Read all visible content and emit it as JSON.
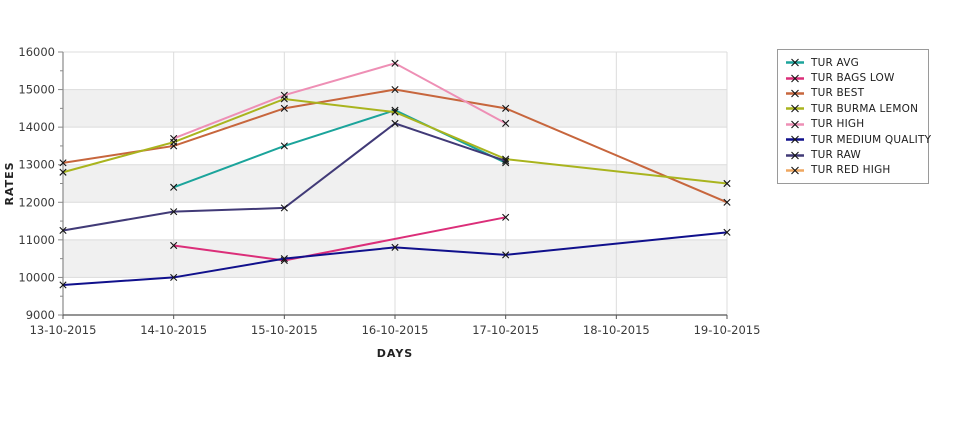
{
  "page": {
    "background": "#ffffff"
  },
  "chart_data": {
    "type": "line",
    "title": "",
    "xlabel": "DAYS",
    "ylabel": "RATES",
    "x_categories": [
      "13-10-2015",
      "14-10-2015",
      "15-10-2015",
      "16-10-2015",
      "17-10-2015",
      "18-10-2015",
      "19-10-2015"
    ],
    "ylim": [
      9000,
      16000
    ],
    "ytick_step": 1000,
    "y_minor_tick_step": 500,
    "grid": true,
    "legend_position": "outside-top-right",
    "marker": "x",
    "marker_color": "#141414",
    "band_color": "#f0f0f0",
    "band_ranges": [
      [
        10000,
        11000
      ],
      [
        12000,
        13000
      ],
      [
        14000,
        15000
      ]
    ],
    "gridline_color": "#dcdcdc",
    "axis_color": "#8a8a8a",
    "bottom_axis_color": "#555555",
    "tick_label_color": "#3a3a3a",
    "series": [
      {
        "name": "TUR AVG",
        "color": "#1BA49B",
        "points": [
          [
            1,
            12400
          ],
          [
            2,
            13500
          ],
          [
            3,
            14450
          ],
          [
            4,
            13050
          ]
        ]
      },
      {
        "name": "TUR BAGS LOW",
        "color": "#DB2E79",
        "points": [
          [
            1,
            10850
          ],
          [
            2,
            10450
          ],
          [
            4,
            11600
          ]
        ]
      },
      {
        "name": "TUR BEST",
        "color": "#C7663D",
        "points": [
          [
            0,
            13050
          ],
          [
            1,
            13500
          ],
          [
            2,
            14500
          ],
          [
            3,
            15000
          ],
          [
            4,
            14500
          ],
          [
            6,
            12000
          ]
        ]
      },
      {
        "name": "TUR BURMA LEMON",
        "color": "#A9B41E",
        "points": [
          [
            0,
            12800
          ],
          [
            1,
            13600
          ],
          [
            2,
            14750
          ],
          [
            3,
            14400
          ],
          [
            4,
            13150
          ],
          [
            6,
            12500
          ]
        ]
      },
      {
        "name": "TUR HIGH",
        "color": "#EE8FB5",
        "points": [
          [
            1,
            13700
          ],
          [
            2,
            14850
          ],
          [
            3,
            15700
          ],
          [
            4,
            14100
          ]
        ]
      },
      {
        "name": "TUR MEDIUM QUALITY",
        "color": "#10108C",
        "points": [
          [
            0,
            9800
          ],
          [
            1,
            10000
          ],
          [
            2,
            10500
          ],
          [
            3,
            10800
          ],
          [
            4,
            10600
          ],
          [
            6,
            11200
          ]
        ]
      },
      {
        "name": "TUR RAW",
        "color": "#413A77",
        "points": [
          [
            0,
            11250
          ],
          [
            1,
            11750
          ],
          [
            2,
            11850
          ],
          [
            3,
            14100
          ],
          [
            4,
            13100
          ]
        ]
      },
      {
        "name": "TUR RED HIGH",
        "color": "#EFA760",
        "points": []
      }
    ]
  }
}
